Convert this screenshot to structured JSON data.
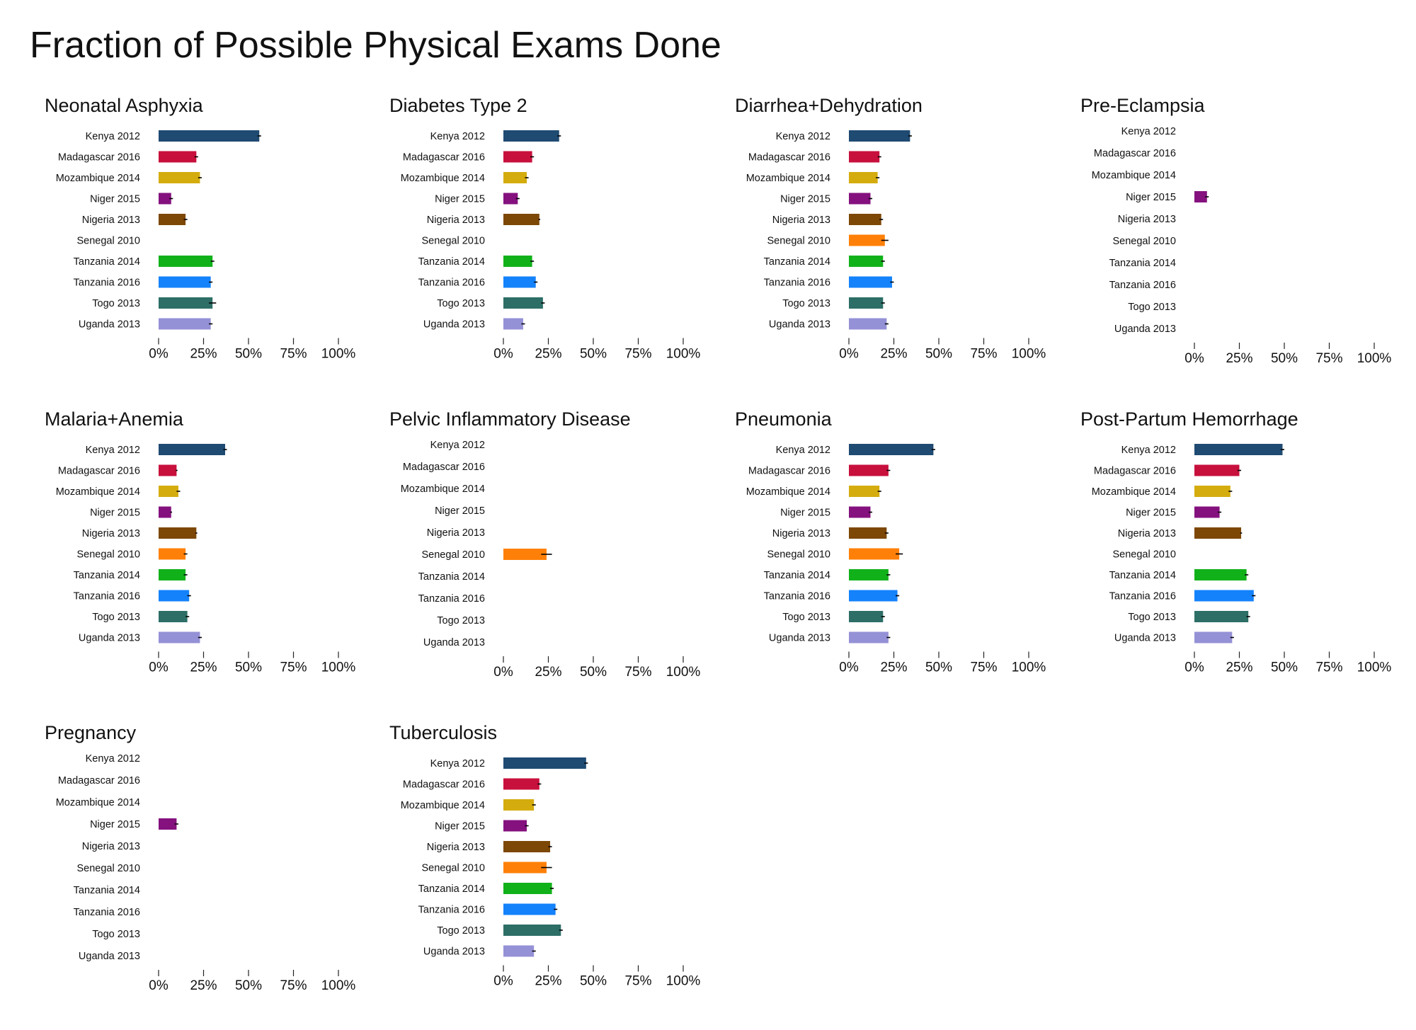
{
  "title": "Fraction of Possible Physical Exams Done",
  "countries": [
    "Kenya 2012",
    "Madagascar 2016",
    "Mozambique 2014",
    "Niger 2015",
    "Nigeria 2013",
    "Senegal 2010",
    "Tanzania 2014",
    "Tanzania 2016",
    "Togo 2013",
    "Uganda 2013"
  ],
  "colors": [
    "#1f4a72",
    "#c8103d",
    "#d4ac0d",
    "#84117e",
    "#7d4705",
    "#ff8008",
    "#11b11a",
    "#1482fb",
    "#2d6e66",
    "#9591d6"
  ],
  "x_ticks": [
    "0%",
    "25%",
    "50%",
    "75%",
    "100%"
  ],
  "chart_data": [
    {
      "type": "bar",
      "title": "Neonatal Asphyxia",
      "xlim": [
        0,
        1
      ],
      "values": [
        0.56,
        0.21,
        0.23,
        0.07,
        0.15,
        null,
        0.3,
        0.29,
        0.3,
        0.29
      ],
      "errors": [
        0.01,
        0.01,
        0.01,
        0.01,
        0.01,
        null,
        0.01,
        0.01,
        0.02,
        0.01
      ]
    },
    {
      "type": "bar",
      "title": "Diabetes Type 2",
      "xlim": [
        0,
        1
      ],
      "values": [
        0.31,
        0.16,
        0.13,
        0.08,
        0.2,
        null,
        0.16,
        0.18,
        0.22,
        0.11
      ],
      "errors": [
        0.01,
        0.01,
        0.01,
        0.01,
        0.005,
        null,
        0.01,
        0.01,
        0.01,
        0.01
      ]
    },
    {
      "type": "bar",
      "title": "Diarrhea+Dehydration",
      "xlim": [
        0,
        1
      ],
      "values": [
        0.34,
        0.17,
        0.16,
        0.12,
        0.18,
        0.2,
        0.19,
        0.24,
        0.19,
        0.21
      ],
      "errors": [
        0.01,
        0.01,
        0.01,
        0.01,
        0.01,
        0.02,
        0.01,
        0.01,
        0.01,
        0.01
      ]
    },
    {
      "type": "bar",
      "title": "Pre-Eclampsia",
      "xlim": [
        0,
        1
      ],
      "values": [
        null,
        null,
        null,
        0.07,
        null,
        null,
        null,
        null,
        null,
        null
      ],
      "errors": [
        null,
        null,
        null,
        0.01,
        null,
        null,
        null,
        null,
        null,
        null
      ]
    },
    {
      "type": "bar",
      "title": "Malaria+Anemia",
      "xlim": [
        0,
        1
      ],
      "values": [
        0.37,
        0.1,
        0.11,
        0.07,
        0.21,
        0.15,
        0.15,
        0.17,
        0.16,
        0.23
      ],
      "errors": [
        0.01,
        0.005,
        0.01,
        0.005,
        0.005,
        0.01,
        0.01,
        0.01,
        0.01,
        0.01
      ]
    },
    {
      "type": "bar",
      "title": "Pelvic Inflammatory Disease",
      "xlim": [
        0,
        1
      ],
      "values": [
        null,
        null,
        null,
        null,
        null,
        0.24,
        null,
        null,
        null,
        null
      ],
      "errors": [
        null,
        null,
        null,
        null,
        null,
        0.03,
        null,
        null,
        null,
        null
      ]
    },
    {
      "type": "bar",
      "title": "Pneumonia",
      "xlim": [
        0,
        1
      ],
      "values": [
        0.47,
        0.22,
        0.17,
        0.12,
        0.21,
        0.28,
        0.22,
        0.27,
        0.19,
        0.22
      ],
      "errors": [
        0.01,
        0.01,
        0.01,
        0.01,
        0.01,
        0.02,
        0.01,
        0.01,
        0.01,
        0.01
      ]
    },
    {
      "type": "bar",
      "title": "Post-Partum Hemorrhage",
      "xlim": [
        0,
        1
      ],
      "values": [
        0.49,
        0.25,
        0.2,
        0.14,
        0.26,
        null,
        0.29,
        0.33,
        0.3,
        0.21
      ],
      "errors": [
        0.01,
        0.01,
        0.01,
        0.01,
        0.005,
        null,
        0.01,
        0.01,
        0.01,
        0.01
      ]
    },
    {
      "type": "bar",
      "title": "Pregnancy",
      "xlim": [
        0,
        1
      ],
      "values": [
        null,
        null,
        null,
        0.1,
        null,
        null,
        null,
        null,
        null,
        null
      ],
      "errors": [
        null,
        null,
        null,
        0.01,
        null,
        null,
        null,
        null,
        null,
        null
      ]
    },
    {
      "type": "bar",
      "title": "Tuberculosis",
      "xlim": [
        0,
        1
      ],
      "values": [
        0.46,
        0.2,
        0.17,
        0.13,
        0.26,
        0.24,
        0.27,
        0.29,
        0.32,
        0.17
      ],
      "errors": [
        0.01,
        0.01,
        0.01,
        0.01,
        0.01,
        0.03,
        0.01,
        0.01,
        0.01,
        0.01
      ]
    }
  ]
}
